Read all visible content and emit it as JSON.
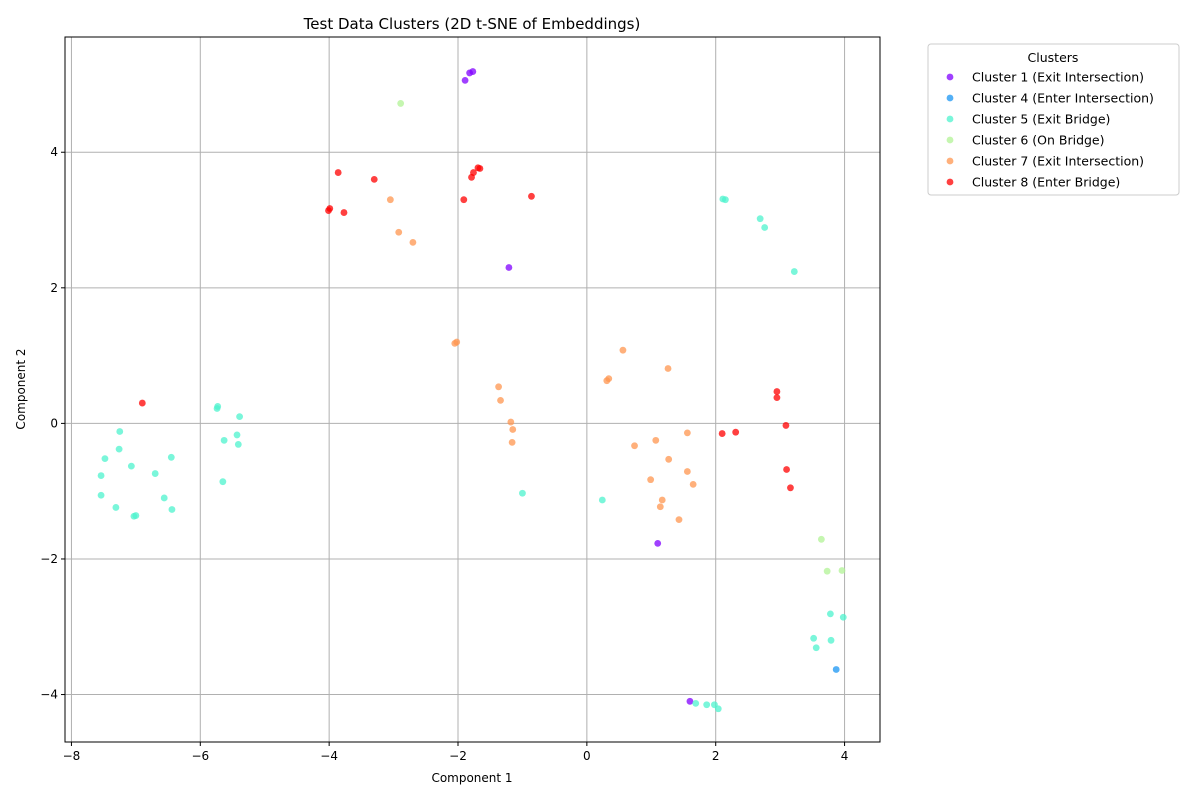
{
  "chart_data": {
    "type": "scatter",
    "title": "Test Data Clusters (2D t-SNE of Embeddings)",
    "xlabel": "Component 1",
    "ylabel": "Component 2",
    "xlim": [
      -8.1,
      4.55
    ],
    "ylim": [
      -4.7,
      5.7
    ],
    "xticks": [
      -8,
      -6,
      -4,
      -2,
      0,
      2,
      4
    ],
    "yticks": [
      -4,
      -2,
      0,
      2,
      4
    ],
    "xtick_labels": [
      "−8",
      "−6",
      "−4",
      "−2",
      "0",
      "2",
      "4"
    ],
    "ytick_labels": [
      "−4",
      "−2",
      "0",
      "2",
      "4"
    ],
    "grid": true,
    "legend": {
      "title": "Clusters",
      "placement": "outside-top-right"
    },
    "series": [
      {
        "name": "Cluster 1 (Exit Intersection)",
        "color": "#8000ff",
        "points": [
          [
            -1.82,
            5.17
          ],
          [
            -1.77,
            5.19
          ],
          [
            -1.89,
            5.06
          ],
          [
            -1.21,
            2.3
          ],
          [
            1.1,
            -1.77
          ],
          [
            1.6,
            -4.1
          ]
        ]
      },
      {
        "name": "Cluster 4 (Enter Intersection)",
        "color": "#1996f3",
        "points": [
          [
            3.87,
            -3.63
          ]
        ]
      },
      {
        "name": "Cluster 5 (Exit Bridge)",
        "color": "#4df3ce",
        "points": [
          [
            -5.73,
            0.25
          ],
          [
            -5.74,
            0.22
          ],
          [
            -5.39,
            0.1
          ],
          [
            -7.25,
            -0.12
          ],
          [
            -5.43,
            -0.17
          ],
          [
            -5.63,
            -0.25
          ],
          [
            -5.41,
            -0.31
          ],
          [
            -7.26,
            -0.38
          ],
          [
            -7.48,
            -0.52
          ],
          [
            -6.45,
            -0.5
          ],
          [
            -7.07,
            -0.63
          ],
          [
            -6.7,
            -0.74
          ],
          [
            -7.54,
            -0.77
          ],
          [
            -5.65,
            -0.86
          ],
          [
            -7.54,
            -1.06
          ],
          [
            -6.56,
            -1.1
          ],
          [
            -7.31,
            -1.24
          ],
          [
            -6.44,
            -1.27
          ],
          [
            -7.03,
            -1.37
          ],
          [
            -7.0,
            -1.36
          ],
          [
            -1.0,
            -1.03
          ],
          [
            0.24,
            -1.13
          ],
          [
            2.11,
            3.31
          ],
          [
            2.15,
            3.3
          ],
          [
            2.69,
            3.02
          ],
          [
            2.76,
            2.89
          ],
          [
            3.22,
            2.24
          ],
          [
            3.78,
            -2.81
          ],
          [
            3.98,
            -2.86
          ],
          [
            3.52,
            -3.17
          ],
          [
            3.79,
            -3.2
          ],
          [
            3.56,
            -3.31
          ],
          [
            1.69,
            -4.13
          ],
          [
            1.86,
            -4.15
          ],
          [
            1.98,
            -4.15
          ],
          [
            2.04,
            -4.21
          ]
        ]
      },
      {
        "name": "Cluster 6 (On Bridge)",
        "color": "#b2f396",
        "points": [
          [
            -2.89,
            4.72
          ],
          [
            3.64,
            -1.71
          ],
          [
            3.73,
            -2.18
          ],
          [
            3.96,
            -2.17
          ]
        ]
      },
      {
        "name": "Cluster 7 (Exit Intersection)",
        "color": "#ff964f",
        "points": [
          [
            -3.05,
            3.3
          ],
          [
            -2.92,
            2.82
          ],
          [
            -2.7,
            2.67
          ],
          [
            -2.02,
            1.2
          ],
          [
            -2.05,
            1.18
          ],
          [
            0.56,
            1.08
          ],
          [
            1.26,
            0.81
          ],
          [
            0.34,
            0.66
          ],
          [
            0.31,
            0.63
          ],
          [
            -1.37,
            0.54
          ],
          [
            -1.34,
            0.34
          ],
          [
            -1.18,
            0.02
          ],
          [
            -1.15,
            -0.09
          ],
          [
            -1.16,
            -0.28
          ],
          [
            1.56,
            -0.14
          ],
          [
            1.07,
            -0.25
          ],
          [
            0.74,
            -0.33
          ],
          [
            1.27,
            -0.53
          ],
          [
            1.56,
            -0.71
          ],
          [
            0.99,
            -0.83
          ],
          [
            1.65,
            -0.9
          ],
          [
            1.17,
            -1.13
          ],
          [
            1.14,
            -1.23
          ],
          [
            1.43,
            -1.42
          ]
        ]
      },
      {
        "name": "Cluster 8 (Enter Bridge)",
        "color": "#ff0000",
        "points": [
          [
            -3.86,
            3.7
          ],
          [
            -3.3,
            3.6
          ],
          [
            -1.69,
            3.77
          ],
          [
            -1.66,
            3.76
          ],
          [
            -1.76,
            3.7
          ],
          [
            -1.79,
            3.63
          ],
          [
            -0.86,
            3.35
          ],
          [
            -1.91,
            3.3
          ],
          [
            -3.99,
            3.17
          ],
          [
            -4.01,
            3.14
          ],
          [
            -3.77,
            3.11
          ],
          [
            -6.9,
            0.3
          ],
          [
            2.95,
            0.47
          ],
          [
            2.95,
            0.38
          ],
          [
            3.09,
            -0.03
          ],
          [
            2.31,
            -0.13
          ],
          [
            2.1,
            -0.15
          ],
          [
            3.1,
            -0.68
          ],
          [
            3.16,
            -0.95
          ]
        ]
      }
    ]
  }
}
